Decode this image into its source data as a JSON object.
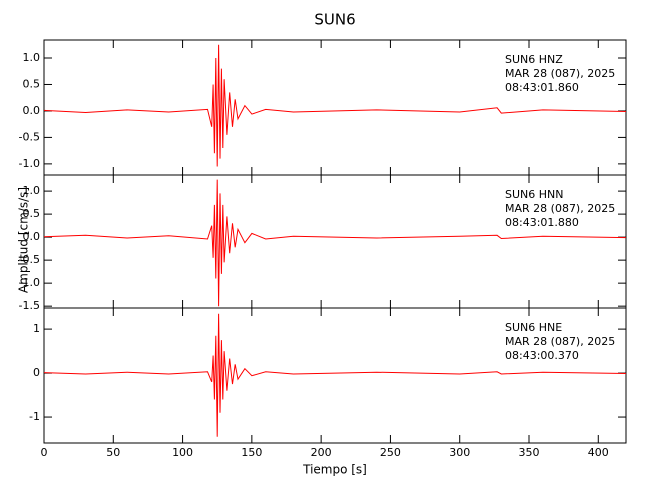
{
  "title": "SUN6",
  "x_label": "Tiempo [s]",
  "y_label": "Amplitud [cm/s/s]",
  "chart_data": [
    {
      "type": "line",
      "color": "#ff0000",
      "annotations": [
        "SUN6   HNZ",
        "MAR 28 (087), 2025",
        "08:43:01.860"
      ],
      "x": [
        0,
        30,
        60,
        90,
        118,
        121,
        122,
        123,
        124,
        125,
        126,
        127,
        128,
        129,
        130,
        132,
        134,
        136,
        138,
        140,
        145,
        150,
        160,
        180,
        240,
        300,
        327,
        330,
        360,
        420
      ],
      "values": [
        0.01,
        -0.03,
        0.02,
        -0.02,
        0.03,
        -0.3,
        0.5,
        -0.8,
        1.0,
        -1.05,
        1.25,
        -0.9,
        0.8,
        -0.7,
        0.6,
        -0.45,
        0.35,
        -0.3,
        0.22,
        -0.15,
        0.1,
        -0.06,
        0.03,
        -0.02,
        0.02,
        -0.02,
        0.06,
        -0.04,
        0.02,
        -0.01
      ],
      "ylim": [
        -1.21,
        1.34
      ],
      "yticks": [
        {
          "value": -1,
          "label": "-1.0"
        },
        {
          "value": -0.5,
          "label": "-0.5"
        },
        {
          "value": 0,
          "label": "0.0"
        },
        {
          "value": 0.5,
          "label": "0.5"
        },
        {
          "value": 1,
          "label": "1.0"
        }
      ]
    },
    {
      "type": "line",
      "color": "#ff0000",
      "annotations": [
        "SUN6   HNN",
        "MAR 28 (087), 2025",
        "08:43:01.880"
      ],
      "x": [
        0,
        30,
        60,
        90,
        118,
        121,
        122,
        123,
        124,
        125,
        126,
        127,
        128,
        129,
        130,
        132,
        134,
        136,
        138,
        140,
        145,
        150,
        160,
        180,
        240,
        300,
        327,
        330,
        360,
        420
      ],
      "values": [
        0.01,
        0.04,
        -0.02,
        0.03,
        -0.04,
        0.25,
        -0.45,
        0.7,
        -0.9,
        1.25,
        -1.5,
        0.95,
        -0.8,
        0.7,
        -0.55,
        0.45,
        -0.35,
        0.3,
        -0.22,
        0.17,
        -0.12,
        0.08,
        -0.04,
        0.02,
        -0.02,
        0.02,
        0.04,
        -0.03,
        0.02,
        -0.01
      ],
      "ylim": [
        -1.54,
        1.35
      ],
      "yticks": [
        {
          "value": -1.5,
          "label": "-1.5"
        },
        {
          "value": -1,
          "label": "-1.0"
        },
        {
          "value": -0.5,
          "label": "-0.5"
        },
        {
          "value": 0,
          "label": "0.0"
        },
        {
          "value": 0.5,
          "label": "0.5"
        },
        {
          "value": 1,
          "label": "1.0"
        }
      ]
    },
    {
      "type": "line",
      "color": "#ff0000",
      "annotations": [
        "SUN6   HNE",
        "MAR 28 (087), 2025",
        "08:43:00.370"
      ],
      "x": [
        0,
        30,
        60,
        90,
        118,
        121,
        122,
        123,
        124,
        125,
        126,
        127,
        128,
        129,
        130,
        132,
        134,
        136,
        138,
        140,
        145,
        150,
        160,
        180,
        240,
        300,
        327,
        330,
        360,
        420
      ],
      "values": [
        0.01,
        -0.02,
        0.02,
        -0.02,
        0.03,
        -0.2,
        0.4,
        -0.6,
        0.85,
        -1.45,
        1.35,
        -0.9,
        0.75,
        -0.6,
        0.5,
        -0.4,
        0.33,
        -0.25,
        0.2,
        -0.14,
        0.1,
        -0.06,
        0.03,
        -0.02,
        0.02,
        -0.02,
        0.03,
        -0.02,
        0.02,
        -0.01
      ],
      "ylim": [
        -1.59,
        1.48
      ],
      "yticks": [
        -1,
        0,
        1
      ],
      "xlim": [
        0,
        420
      ],
      "xticks": [
        0,
        50,
        100,
        150,
        200,
        250,
        300,
        350,
        400
      ]
    }
  ]
}
